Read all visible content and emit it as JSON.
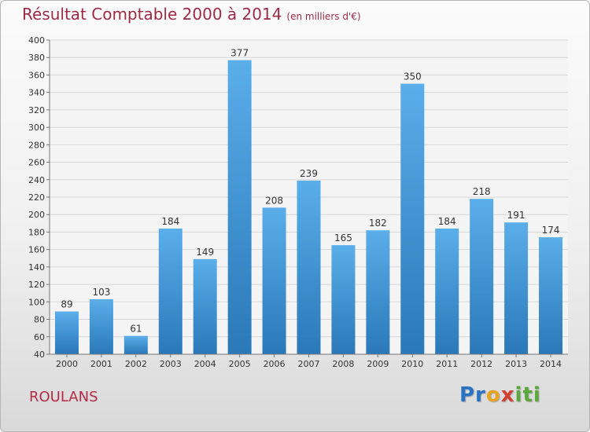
{
  "header": {
    "title": "Résultat Comptable 2000 à 2014",
    "subtitle": "(en milliers d'€)"
  },
  "footer": {
    "commune": "ROULANS",
    "logo": "Proxiti"
  },
  "chart_data": {
    "type": "bar",
    "title": "Résultat Comptable 2000 à 2014",
    "subtitle": "(en milliers d'€)",
    "xlabel": "",
    "ylabel": "",
    "categories": [
      "2000",
      "2001",
      "2002",
      "2003",
      "2004",
      "2005",
      "2006",
      "2007",
      "2008",
      "2009",
      "2010",
      "2011",
      "2012",
      "2013",
      "2014"
    ],
    "values": [
      89,
      103,
      61,
      184,
      149,
      377,
      208,
      239,
      165,
      182,
      350,
      184,
      218,
      191,
      174
    ],
    "ylim": [
      40,
      400
    ],
    "yticks": [
      40,
      60,
      80,
      100,
      120,
      140,
      160,
      180,
      200,
      220,
      240,
      260,
      280,
      300,
      320,
      340,
      360,
      380,
      400
    ],
    "grid": true,
    "legend": "none",
    "colors": {
      "bar_light": "#5aaeea",
      "bar_dark": "#2a78b8",
      "grid": "#d8d8d8",
      "plot_bg": "#f4f4f4"
    }
  }
}
